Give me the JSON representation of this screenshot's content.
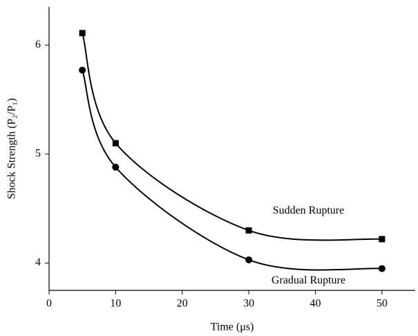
{
  "chart_data": {
    "type": "line",
    "xlabel": "Time (μs)",
    "ylabel": "Shock Strength (P₂/P₁)",
    "x": [
      5,
      10,
      30,
      50
    ],
    "series": [
      {
        "name": "Sudden Rupture",
        "color": "#000000",
        "marker": "square",
        "values": [
          6.11,
          5.1,
          4.3,
          4.22
        ]
      },
      {
        "name": "Gradual Rupture",
        "color": "#000000",
        "marker": "circle",
        "values": [
          5.77,
          4.88,
          4.03,
          3.95
        ]
      }
    ],
    "xlim": [
      0,
      55
    ],
    "xticks": [
      0,
      10,
      20,
      30,
      40,
      50
    ],
    "ylim": [
      3.75,
      6.35
    ],
    "yticks": [
      4,
      5,
      6
    ],
    "smooth": true,
    "grid": false
  }
}
